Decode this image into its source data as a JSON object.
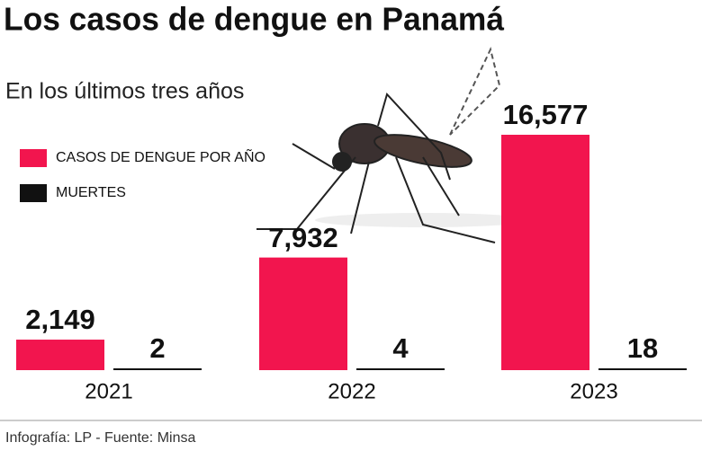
{
  "chart_data": {
    "type": "bar",
    "title": "Los casos de dengue en Panamá",
    "subtitle": "En los últimos tres años",
    "source": "Infografía: LP - Fuente: Minsa",
    "categories": [
      "2021",
      "2022",
      "2023"
    ],
    "series": [
      {
        "name": "CASOS DE DENGUE POR AÑO",
        "color": "#f2154e",
        "values": [
          2149,
          7932,
          16577
        ],
        "value_labels": [
          "2,149",
          "7,932",
          "16,577"
        ]
      },
      {
        "name": "MUERTES",
        "color": "#111111",
        "values": [
          2,
          4,
          18
        ]
      }
    ]
  }
}
